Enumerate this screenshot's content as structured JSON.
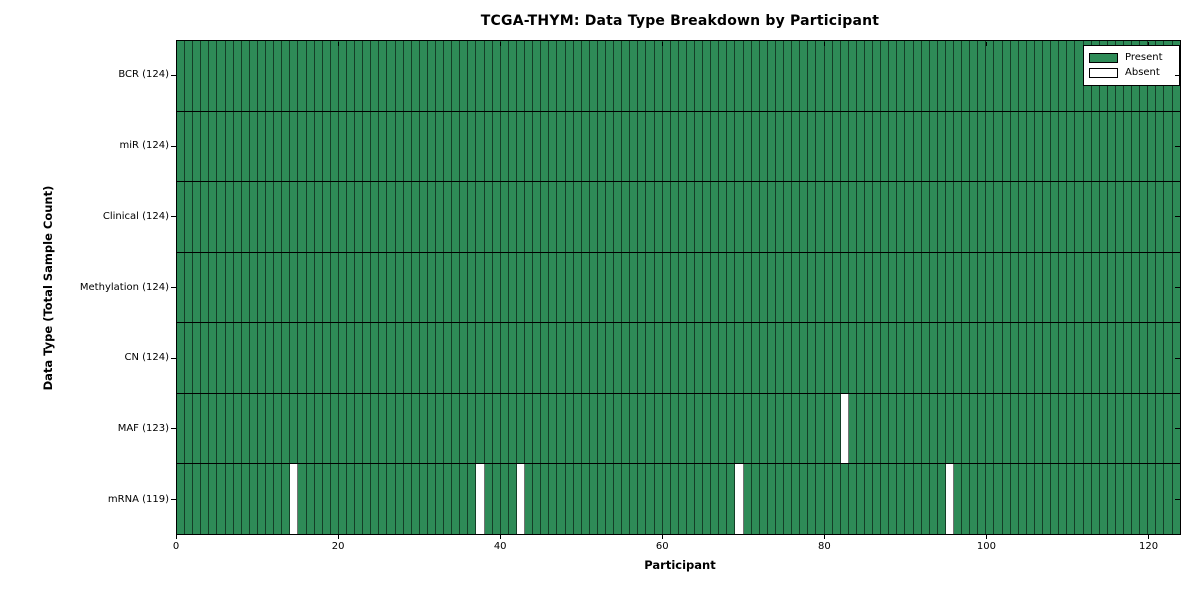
{
  "chart_data": {
    "type": "heatmap",
    "title": "TCGA-THYM: Data Type Breakdown by Participant",
    "xlabel": "Participant",
    "ylabel": "Data Type (Total Sample Count)",
    "n_participants": 124,
    "x_ticks": [
      0,
      20,
      40,
      60,
      80,
      100,
      120
    ],
    "x_range": [
      0,
      124
    ],
    "grid": "cell-borders-on",
    "legend_position": "upper-right",
    "rows": [
      {
        "label": "BCR (124)",
        "data_type": "BCR",
        "present_count": 124,
        "absent_at": []
      },
      {
        "label": "miR (124)",
        "data_type": "miR",
        "present_count": 124,
        "absent_at": []
      },
      {
        "label": "Clinical (124)",
        "data_type": "Clinical",
        "present_count": 124,
        "absent_at": []
      },
      {
        "label": "Methylation (124)",
        "data_type": "Methylation",
        "present_count": 124,
        "absent_at": []
      },
      {
        "label": "CN (124)",
        "data_type": "CN",
        "present_count": 124,
        "absent_at": []
      },
      {
        "label": "MAF (123)",
        "data_type": "MAF",
        "present_count": 123,
        "absent_at": [
          82
        ]
      },
      {
        "label": "mRNA (119)",
        "data_type": "mRNA",
        "present_count": 119,
        "absent_at": [
          14,
          37,
          42,
          69,
          95
        ]
      }
    ],
    "legend": [
      {
        "label": "Present",
        "color": "#2E8B57"
      },
      {
        "label": "Absent",
        "color": "#FFFFFF"
      }
    ],
    "colors": {
      "present": "#2E8B57",
      "absent": "#FFFFFF",
      "cell_edge": "rgba(0,0,0,0.55)",
      "spine": "#000000",
      "background": "#FFFFFF"
    }
  }
}
